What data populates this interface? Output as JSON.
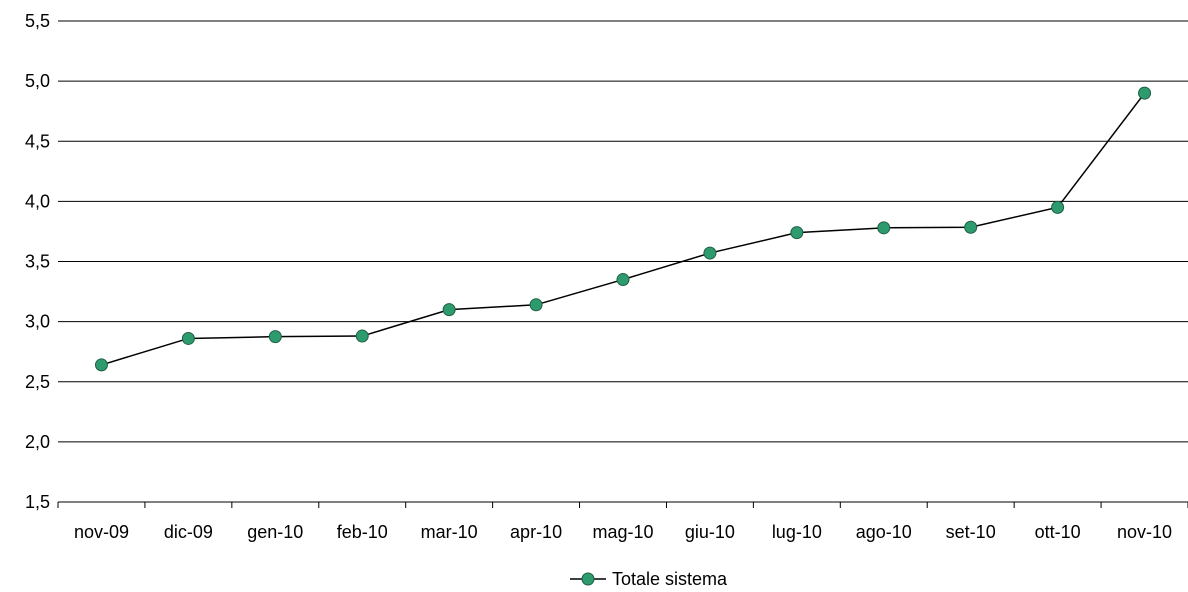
{
  "chart_data": {
    "type": "line",
    "categories": [
      "nov-09",
      "dic-09",
      "gen-10",
      "feb-10",
      "mar-10",
      "apr-10",
      "mag-10",
      "giu-10",
      "lug-10",
      "ago-10",
      "set-10",
      "ott-10",
      "nov-10"
    ],
    "series": [
      {
        "name": "Totale sistema",
        "values": [
          2.64,
          2.86,
          2.875,
          2.88,
          3.1,
          3.14,
          3.35,
          3.57,
          3.74,
          3.78,
          3.785,
          3.95,
          4.9
        ],
        "line_color": "#000000",
        "marker_color": "#2e9b6e",
        "marker_edge_color": "#1f5f43"
      }
    ],
    "ylim": [
      1.5,
      5.5
    ],
    "yticks": [
      1.5,
      2.0,
      2.5,
      3.0,
      3.5,
      4.0,
      4.5,
      5.0,
      5.5
    ],
    "ytick_labels": [
      "1,5",
      "2,0",
      "2,5",
      "3,0",
      "3,5",
      "4,0",
      "4,5",
      "5,0",
      "5,5"
    ],
    "grid": true,
    "legend_position": "bottom-center"
  }
}
